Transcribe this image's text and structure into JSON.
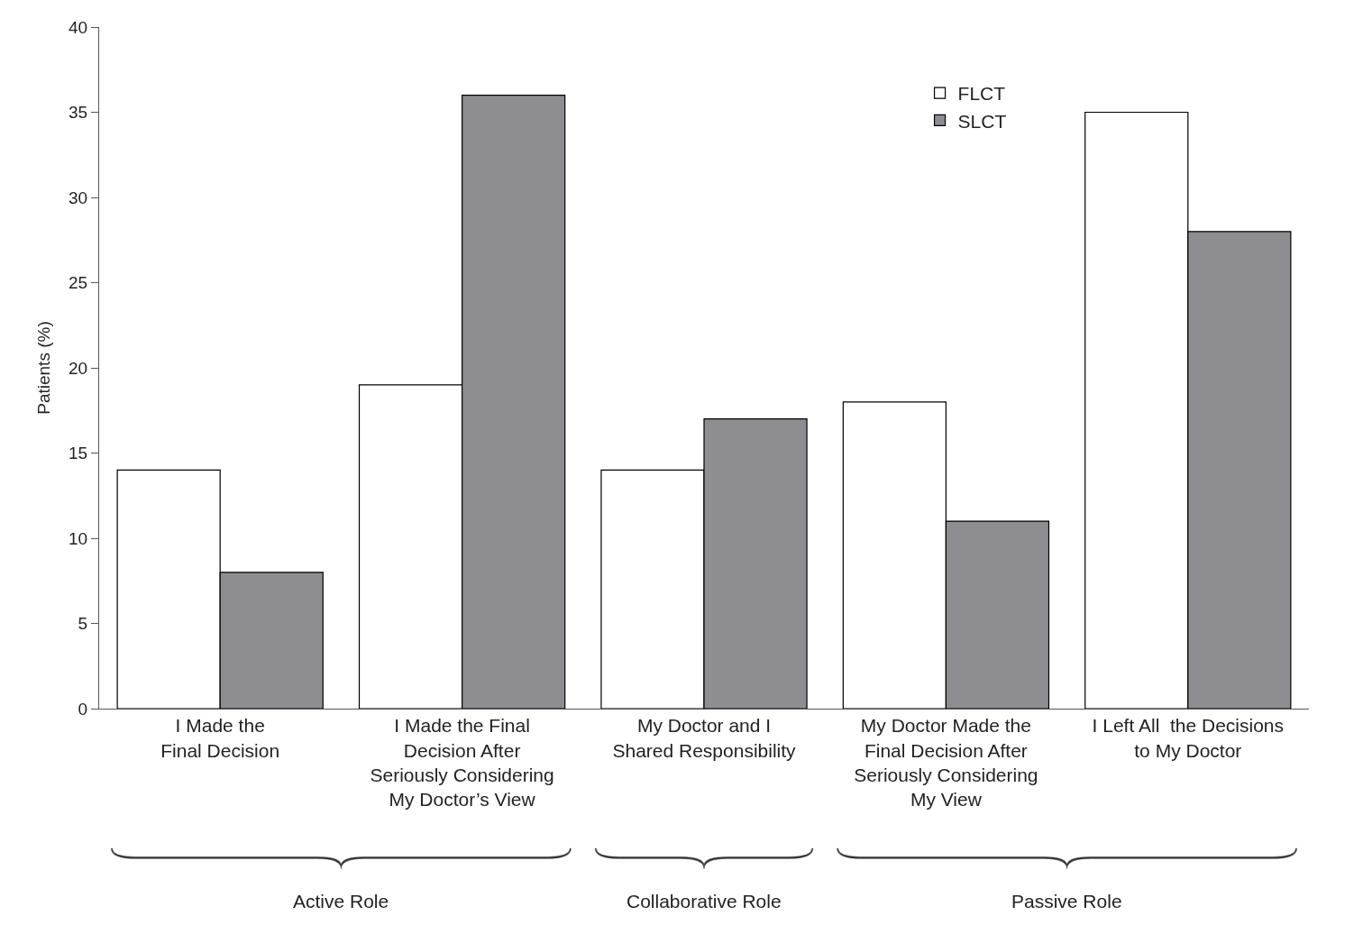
{
  "chart_data": {
    "type": "bar",
    "categories": [
      "I Made the\nFinal Decision",
      "I Made the Final\nDecision After\nSeriously Considering\nMy Doctor’s View",
      "My Doctor and I\nShared Responsibility",
      "My Doctor Made the\nFinal Decision After\nSeriously Considering\nMy View",
      "I Left All  the Decisions\nto My Doctor"
    ],
    "series": [
      {
        "name": "FLCT",
        "color": "#ffffff",
        "values": [
          14,
          19,
          14,
          18,
          35
        ]
      },
      {
        "name": "SLCT",
        "color": "#8e8e92",
        "values": [
          8,
          36,
          17,
          11,
          28
        ]
      }
    ],
    "ylabel": "Patients (%)",
    "ylim": [
      0,
      40
    ],
    "yticks": [
      0,
      5,
      10,
      15,
      20,
      25,
      30,
      35,
      40
    ],
    "annotations": [
      "Active Role",
      "Collaborative Role",
      "Passive Role"
    ],
    "legend": "top right"
  }
}
